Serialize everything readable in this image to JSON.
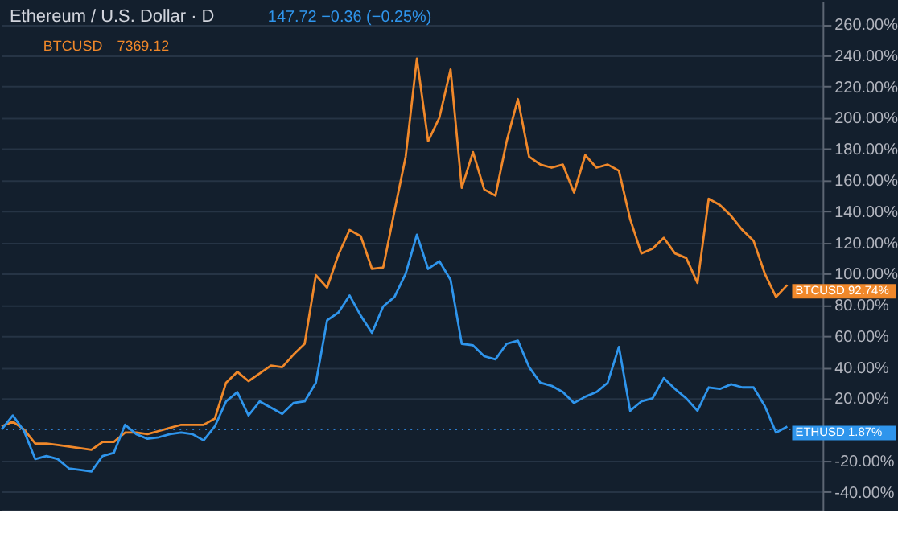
{
  "chart_data": {
    "type": "line",
    "title": "Ethereum / U.S. Dollar · D",
    "annotations": [
      "147.72 −0.36 (−0.25%)",
      "BTCUSD",
      "7369.12"
    ],
    "categories": [
      null,
      null,
      null,
      null,
      null,
      null,
      null,
      null,
      null,
      null,
      null,
      null,
      null,
      null,
      null,
      null,
      null,
      null,
      null,
      null,
      null,
      null,
      null,
      null,
      null,
      null,
      null,
      null,
      null,
      null,
      null,
      null,
      null,
      null,
      null,
      null,
      null,
      null,
      null,
      null,
      null,
      null,
      null,
      null,
      null,
      null,
      null,
      null,
      null,
      null,
      null,
      null,
      null,
      null,
      null,
      null,
      null,
      null,
      null,
      null,
      null,
      null,
      null,
      null,
      null,
      null,
      null,
      null,
      null,
      null,
      null
    ],
    "series": [
      {
        "name": "BTCUSD",
        "color": "#f0882a",
        "values": [
          2,
          5,
          0,
          -9,
          -9,
          -10,
          -11,
          -12,
          -13,
          -8,
          -8,
          -2,
          -2,
          -3,
          -1,
          1,
          3,
          3,
          3,
          7,
          30,
          37,
          31,
          36,
          41,
          40,
          48,
          55,
          99,
          91,
          112,
          128,
          124,
          103,
          104,
          140,
          175,
          238,
          185,
          200,
          231,
          155,
          178,
          154,
          150,
          185,
          212,
          175,
          170,
          168,
          170,
          152,
          176,
          168,
          170,
          166,
          135,
          113,
          116,
          123,
          113,
          110,
          94,
          148,
          144,
          137,
          128,
          121,
          100,
          85,
          92.74
        ],
        "value_labels": [
          null,
          null,
          null,
          null,
          null,
          null,
          null,
          null,
          null,
          null,
          null,
          null,
          null,
          null,
          null,
          null,
          null,
          null,
          null,
          null,
          null,
          null,
          null,
          null,
          null,
          null,
          null,
          null,
          null,
          null,
          null,
          null,
          null,
          null,
          null,
          null,
          null,
          null,
          null,
          null,
          null,
          null,
          null,
          null,
          null,
          null,
          null,
          null,
          null,
          null,
          null,
          null,
          null,
          null,
          null,
          null,
          null,
          null,
          null,
          null,
          null,
          null,
          null,
          null,
          null,
          null,
          null,
          null,
          null,
          null,
          "92.74%"
        ]
      },
      {
        "name": "ETHUSD",
        "color": "#2f95ec",
        "values": [
          0,
          9,
          -1,
          -19,
          -17,
          -19,
          -25,
          -26,
          -27,
          -17,
          -15,
          3,
          -3,
          -6,
          -5,
          -3,
          -2,
          -3,
          -7,
          2,
          18,
          24,
          9,
          18,
          14,
          10,
          17,
          18,
          30,
          70,
          75,
          86,
          73,
          62,
          79,
          85,
          100,
          125,
          103,
          108,
          96,
          55,
          54,
          47,
          45,
          55,
          57,
          40,
          30,
          28,
          24,
          17,
          21,
          24,
          30,
          53,
          12,
          18,
          20,
          33,
          26,
          20,
          12,
          27,
          26,
          29,
          27,
          27,
          15,
          -2,
          1.87
        ],
        "value_labels": [
          null,
          null,
          null,
          null,
          null,
          null,
          null,
          null,
          null,
          null,
          null,
          null,
          null,
          null,
          null,
          null,
          null,
          null,
          null,
          null,
          null,
          null,
          null,
          null,
          null,
          null,
          null,
          null,
          null,
          null,
          null,
          null,
          null,
          null,
          null,
          null,
          null,
          null,
          null,
          null,
          null,
          null,
          null,
          null,
          null,
          null,
          null,
          null,
          null,
          null,
          null,
          null,
          null,
          null,
          null,
          null,
          null,
          null,
          null,
          null,
          null,
          null,
          null,
          null,
          null,
          null,
          null,
          null,
          null,
          null,
          "1.87%"
        ]
      }
    ],
    "ylim": [
      -52,
      275
    ],
    "yticks": [
      {
        "value": -40,
        "label": "-40.00%"
      },
      {
        "value": -20,
        "label": "-20.00%"
      },
      {
        "value": 20,
        "label": "20.00%"
      },
      {
        "value": 40,
        "label": "40.00%"
      },
      {
        "value": 60,
        "label": "60.00%"
      },
      {
        "value": 80,
        "label": "80.00%"
      },
      {
        "value": 100,
        "label": "100.00%"
      },
      {
        "value": 120,
        "label": "120.00%"
      },
      {
        "value": 140,
        "label": "140.00%"
      },
      {
        "value": 160,
        "label": "160.00%"
      },
      {
        "value": 180,
        "label": "180.00%"
      },
      {
        "value": 200,
        "label": "200.00%"
      },
      {
        "value": 220,
        "label": "220.00%"
      },
      {
        "value": 240,
        "label": "240.00%"
      },
      {
        "value": 260,
        "label": "260.00%"
      }
    ],
    "ref_lines": [
      {
        "axis": "y",
        "value": 0,
        "color": "#2f7fd0",
        "line_style": "dotted"
      }
    ],
    "grid": "y",
    "tick_labels": "y"
  }
}
